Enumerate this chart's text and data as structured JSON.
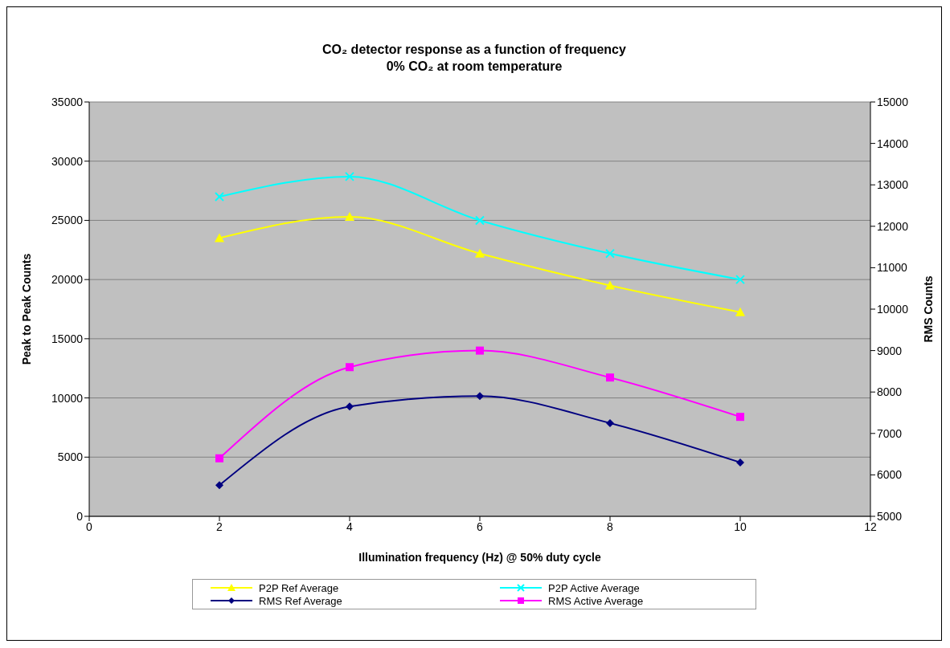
{
  "chart_data": {
    "type": "line",
    "title": "CO₂ detector response as a function of frequency",
    "subtitle": "0% CO₂ at room temperature",
    "xlabel": "Illumination frequency (Hz) @ 50% duty cycle",
    "ylabel": "Peak to Peak Counts",
    "y2label": "RMS Counts",
    "x": [
      2,
      4,
      6,
      8,
      10
    ],
    "series": [
      {
        "name": "P2P Ref Average",
        "color": "#ffff00",
        "marker": "triangle",
        "values": [
          23500,
          25300,
          22200,
          19500,
          17250
        ]
      },
      {
        "name": "P2P Active Average",
        "color": "#00ffff",
        "marker": "cross",
        "values": [
          27000,
          28700,
          25000,
          22200,
          20000
        ]
      },
      {
        "name": "RMS Ref Average",
        "color": "#000080",
        "marker": "diamond",
        "axis": "y2",
        "values": [
          5750,
          7650,
          7900,
          7250,
          6300
        ]
      },
      {
        "name": "RMS Active Average",
        "color": "#ff00ff",
        "marker": "square",
        "axis": "y2",
        "values": [
          6400,
          8600,
          9000,
          8350,
          7400
        ]
      }
    ],
    "xlim": [
      0,
      12
    ],
    "xticks": [
      0,
      2,
      4,
      6,
      8,
      10,
      12
    ],
    "ylim": [
      0,
      35000
    ],
    "yticks": [
      0,
      5000,
      10000,
      15000,
      20000,
      25000,
      30000,
      35000
    ],
    "y2lim": [
      5000,
      15000
    ],
    "y2ticks": [
      5000,
      6000,
      7000,
      8000,
      9000,
      10000,
      11000,
      12000,
      13000,
      14000,
      15000
    ],
    "grid": "y",
    "legend": "bottom",
    "line_style": "solid"
  }
}
